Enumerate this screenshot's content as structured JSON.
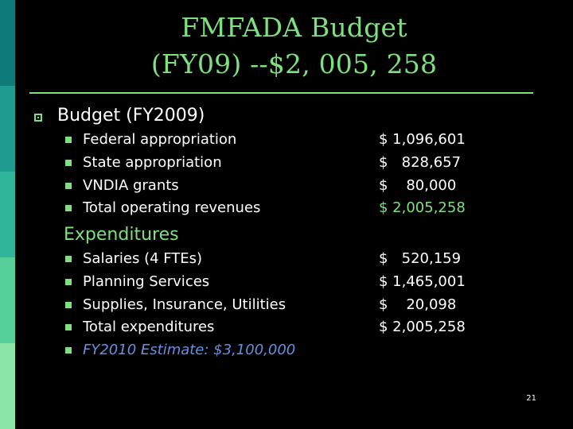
{
  "theme": {
    "background": "#000000",
    "accent": "#7ee07e",
    "strip_colors": [
      "#0e7a7a",
      "#1f9c8f",
      "#2fb59a",
      "#56d09b",
      "#89e6a8"
    ]
  },
  "slide": {
    "title_line1": "FMFADA Budget",
    "title_line2": "(FY09) --$2, 005, 258",
    "number": "21"
  },
  "budget": {
    "heading": "Budget (FY2009)",
    "items": [
      {
        "label": "Federal appropriation",
        "amount": "$ 1,096,601"
      },
      {
        "label": "State appropriation",
        "amount": "$   828,657"
      },
      {
        "label": "VNDIA grants",
        "amount": "$    80,000"
      },
      {
        "label": "Total operating revenues",
        "amount": "$ 2,005,258"
      }
    ]
  },
  "expenditures": {
    "heading": "Expenditures",
    "items": [
      {
        "label": "Salaries (4 FTEs)",
        "amount": "$   520,159"
      },
      {
        "label": "Planning Services",
        "amount": "$ 1,465,001"
      },
      {
        "label": "Supplies, Insurance, Utilities",
        "amount": "$    20,098"
      },
      {
        "label": "Total expenditures",
        "amount": "$ 2,005,258"
      }
    ],
    "estimate": "FY2010 Estimate: $3,100,000"
  }
}
